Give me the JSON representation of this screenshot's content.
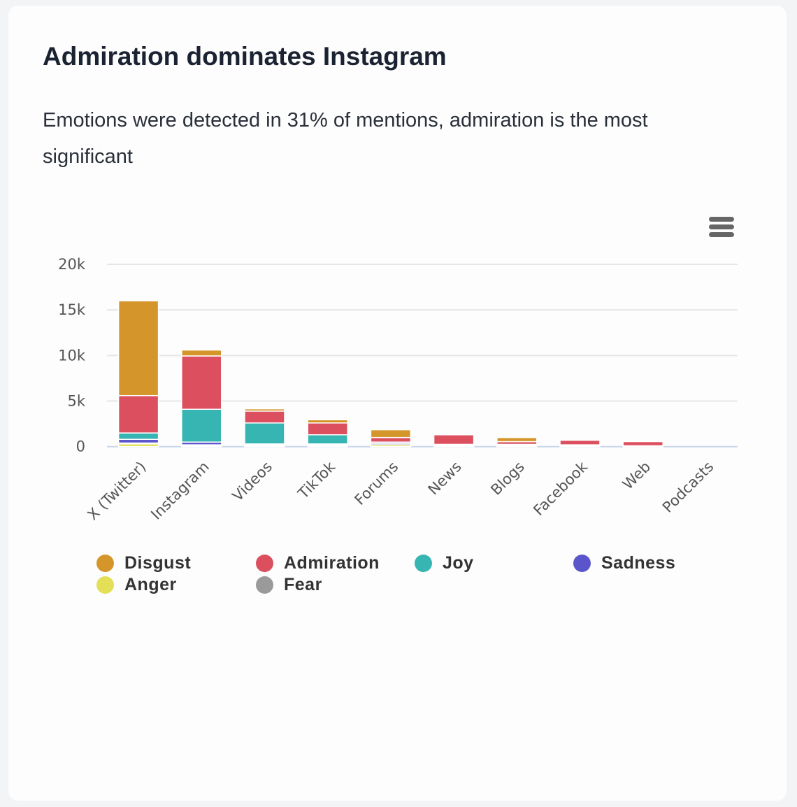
{
  "title": "Admiration dominates Instagram",
  "subtitle": "Emotions were detected in 31% of mentions, admiration is the most significant",
  "menu_icon": "hamburger-menu-icon",
  "chart_data": {
    "type": "bar",
    "stacked": true,
    "categories": [
      "X (Twitter)",
      "Instagram",
      "Videos",
      "TikTok",
      "Forums",
      "News",
      "Blogs",
      "Facebook",
      "Web",
      "Podcasts"
    ],
    "yticks": [
      "0",
      "5k",
      "10k",
      "15k",
      "20k"
    ],
    "ylim": [
      0,
      20000
    ],
    "grid": true,
    "legend_position": "bottom",
    "series": [
      {
        "name": "Anger",
        "color": "#e3df56",
        "values": [
          300,
          100,
          100,
          100,
          200,
          100,
          100,
          100,
          50,
          0
        ]
      },
      {
        "name": "Fear",
        "color": "#9a9a9a",
        "values": [
          100,
          100,
          100,
          100,
          150,
          100,
          100,
          50,
          50,
          0
        ]
      },
      {
        "name": "Sadness",
        "color": "#5b55cc",
        "values": [
          400,
          300,
          100,
          100,
          150,
          50,
          50,
          50,
          0,
          0
        ]
      },
      {
        "name": "Joy",
        "color": "#36b5b3",
        "values": [
          700,
          3600,
          2300,
          1000,
          0,
          0,
          0,
          0,
          0,
          0
        ]
      },
      {
        "name": "Admiration",
        "color": "#db4f5e",
        "values": [
          4100,
          5850,
          1300,
          1300,
          500,
          1050,
          300,
          500,
          450,
          0
        ]
      },
      {
        "name": "Disgust",
        "color": "#d4962a",
        "values": [
          10400,
          650,
          250,
          350,
          850,
          0,
          450,
          0,
          0,
          0
        ]
      }
    ]
  },
  "legend": [
    {
      "label": "Disgust",
      "color": "#d4962a"
    },
    {
      "label": "Admiration",
      "color": "#db4f5e"
    },
    {
      "label": "Joy",
      "color": "#36b5b3"
    },
    {
      "label": "Sadness",
      "color": "#5b55cc"
    },
    {
      "label": "Anger",
      "color": "#e3df56"
    },
    {
      "label": "Fear",
      "color": "#9a9a9a"
    }
  ]
}
